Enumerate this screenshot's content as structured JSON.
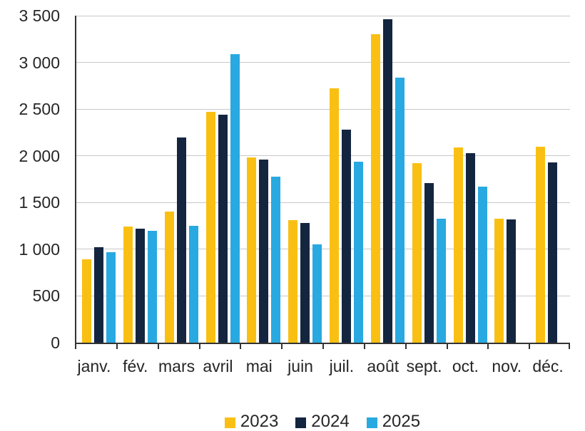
{
  "chart_data": {
    "type": "bar",
    "title": "",
    "xlabel": "",
    "ylabel": "",
    "categories": [
      "janv.",
      "fév.",
      "mars",
      "avril",
      "mai",
      "juin",
      "juil.",
      "août",
      "sept.",
      "oct.",
      "nov.",
      "déc."
    ],
    "series": [
      {
        "name": "2023",
        "color": "#F9C013",
        "values": [
          890,
          1240,
          1400,
          2470,
          1980,
          1310,
          2720,
          3300,
          1920,
          2090,
          1330,
          2100
        ]
      },
      {
        "name": "2024",
        "color": "#14253F",
        "values": [
          1020,
          1220,
          2200,
          2440,
          1960,
          1280,
          2280,
          3460,
          1710,
          2030,
          1320,
          1930
        ]
      },
      {
        "name": "2025",
        "color": "#29A9E1",
        "values": [
          970,
          1200,
          1250,
          3090,
          1780,
          1050,
          1940,
          2840,
          1330,
          1670,
          null,
          null
        ]
      }
    ],
    "ylim": [
      0,
      3500
    ],
    "ytick_interval": 500,
    "ytick_labels": [
      "0",
      "500",
      "1 000",
      "1 500",
      "2 000",
      "2 500",
      "3 000",
      "3 500"
    ],
    "grid": "horizontal",
    "legend_position": "bottom",
    "colors": {
      "axis": "#333333",
      "gridline": "#c8c8c8",
      "text": "#262626",
      "background": "#ffffff"
    }
  }
}
